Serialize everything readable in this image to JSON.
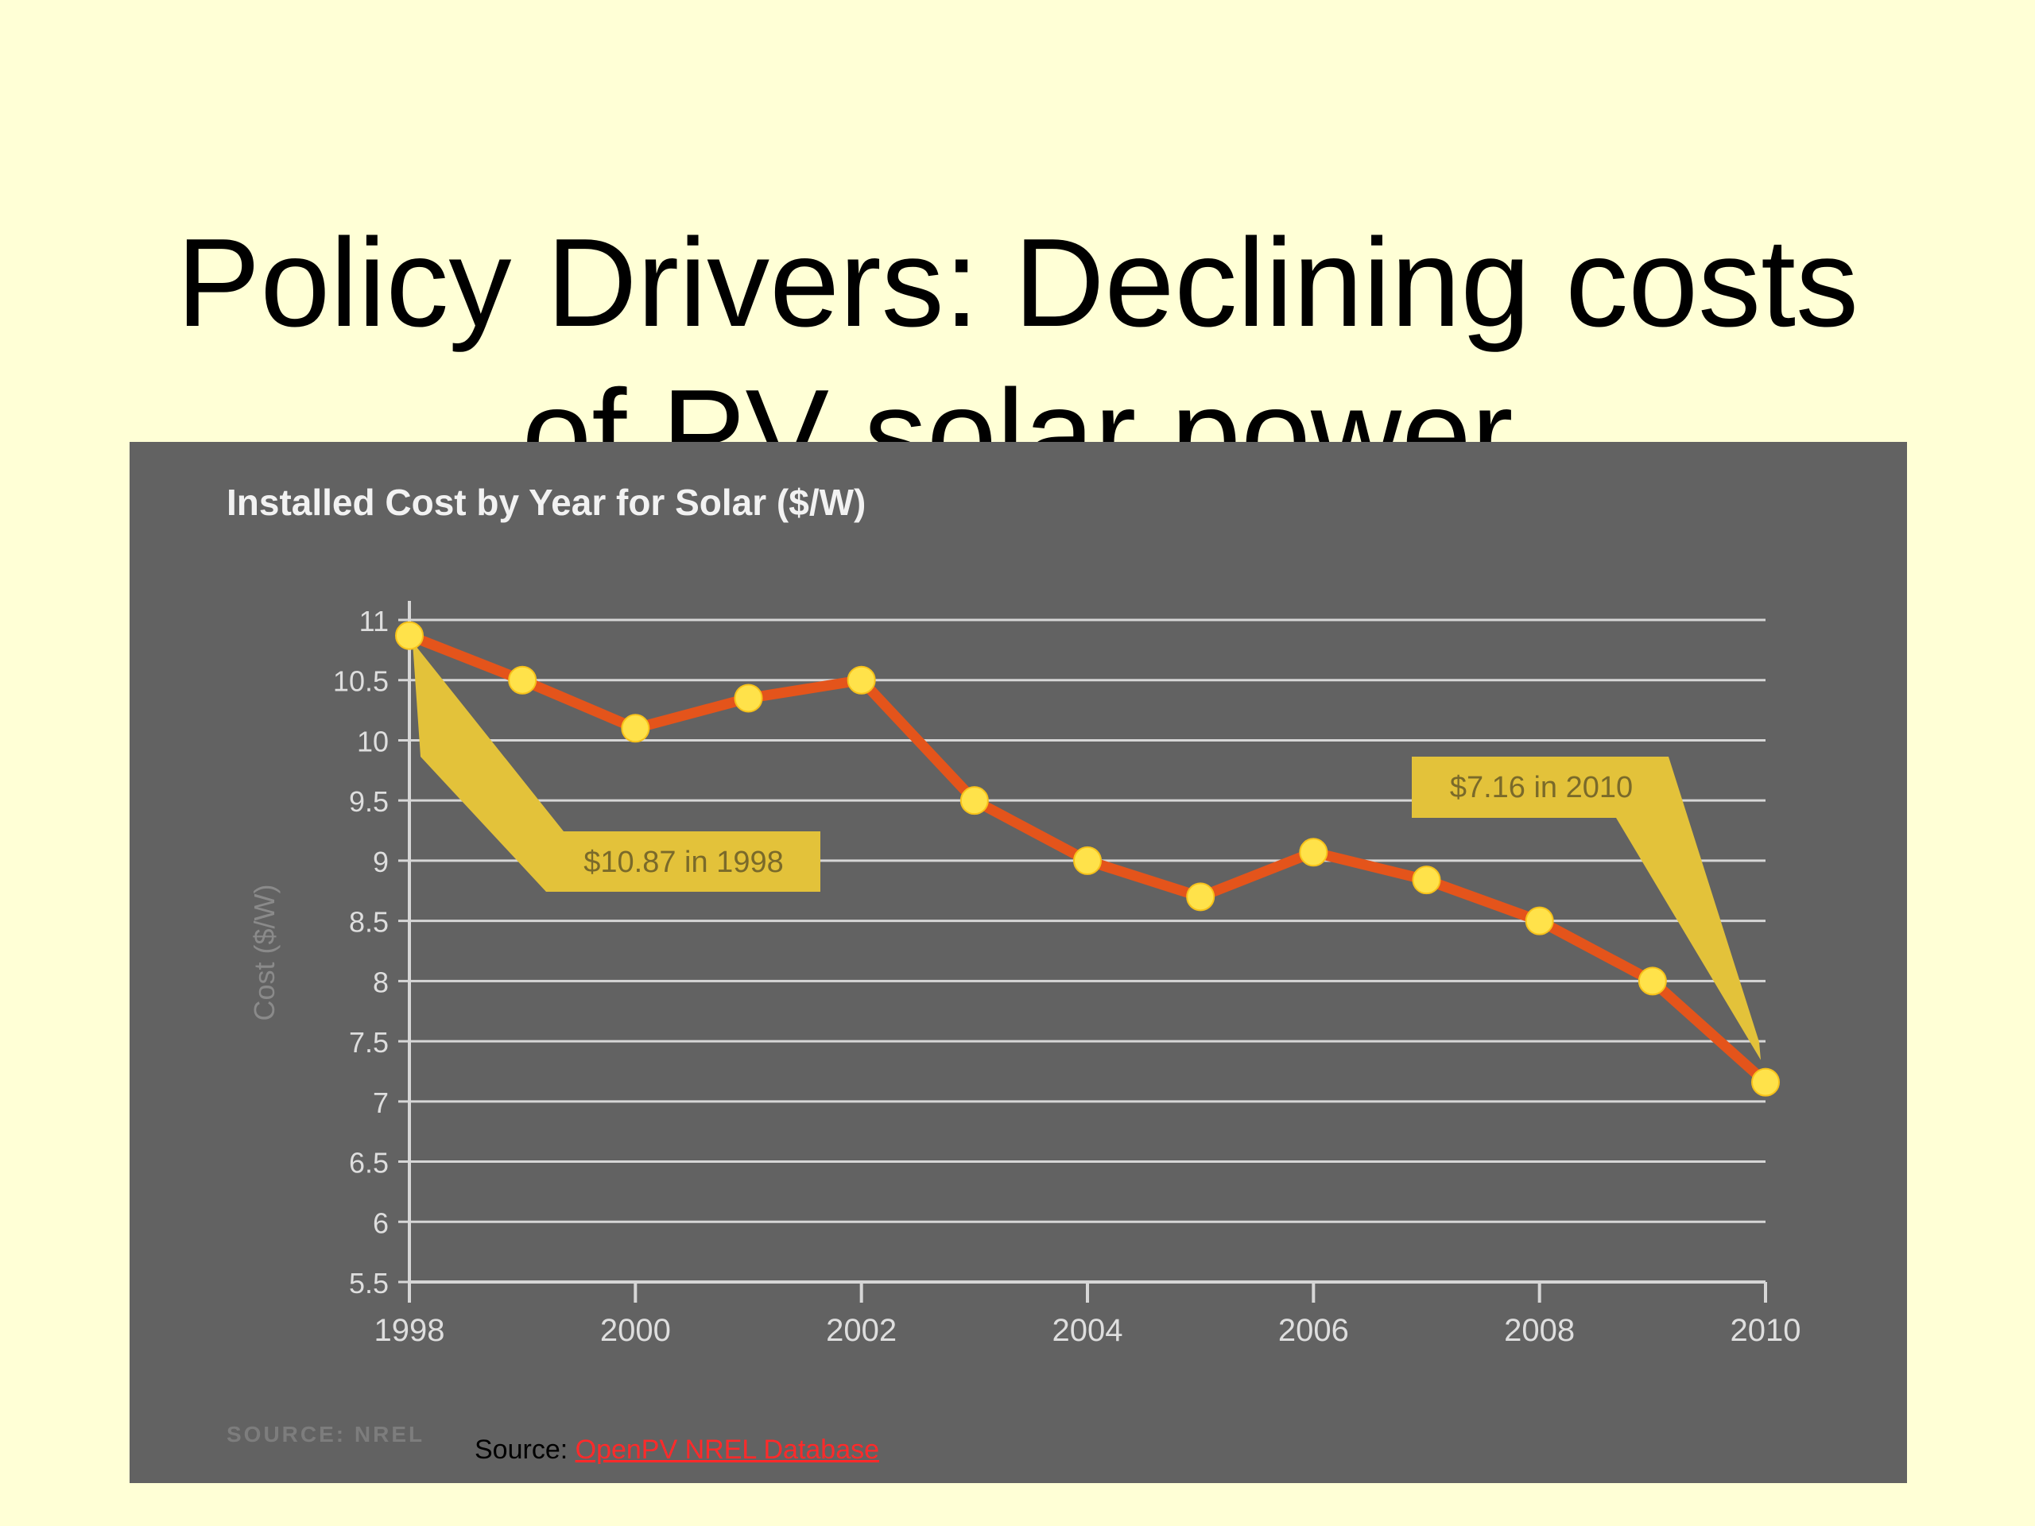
{
  "slide": {
    "title_line1": "Policy Drivers: Declining costs",
    "title_line2": "of PV solar power"
  },
  "source": {
    "prefix": "Source: ",
    "link_text": "OpenPV NREL Database"
  },
  "colors": {
    "background": "#ffffd6",
    "panel": "#626262",
    "line": "#e4541b",
    "points": "#ffe24a",
    "callout": "#e3c23a",
    "link": "#ff2a2a"
  },
  "chart_data": {
    "type": "line",
    "title": "Installed Cost by Year for Solar ($/W)",
    "ylabel": "Cost ($/W)",
    "xlabel": "",
    "x": [
      1998,
      1999,
      2000,
      2001,
      2002,
      2003,
      2004,
      2005,
      2006,
      2007,
      2008,
      2009,
      2010
    ],
    "values": [
      10.87,
      10.5,
      10.1,
      10.35,
      10.5,
      9.5,
      9.0,
      8.7,
      9.07,
      8.84,
      8.5,
      8.0,
      7.16
    ],
    "xlim": [
      1998,
      2010
    ],
    "ylim": [
      5.5,
      11
    ],
    "x_ticks": [
      "1998",
      "2000",
      "2002",
      "2004",
      "2006",
      "2008",
      "2010"
    ],
    "y_ticks": [
      "11",
      "10.5",
      "10",
      "9.5",
      "9",
      "8.5",
      "8",
      "7.5",
      "7",
      "6.5",
      "6",
      "5.5"
    ],
    "grid": true,
    "annotations": [
      {
        "text": "$10.87 in 1998",
        "x": 1998,
        "y": 10.87
      },
      {
        "text": "$7.16 in 2010",
        "x": 2010,
        "y": 7.16
      }
    ],
    "source_note": "SOURCE: NREL"
  }
}
